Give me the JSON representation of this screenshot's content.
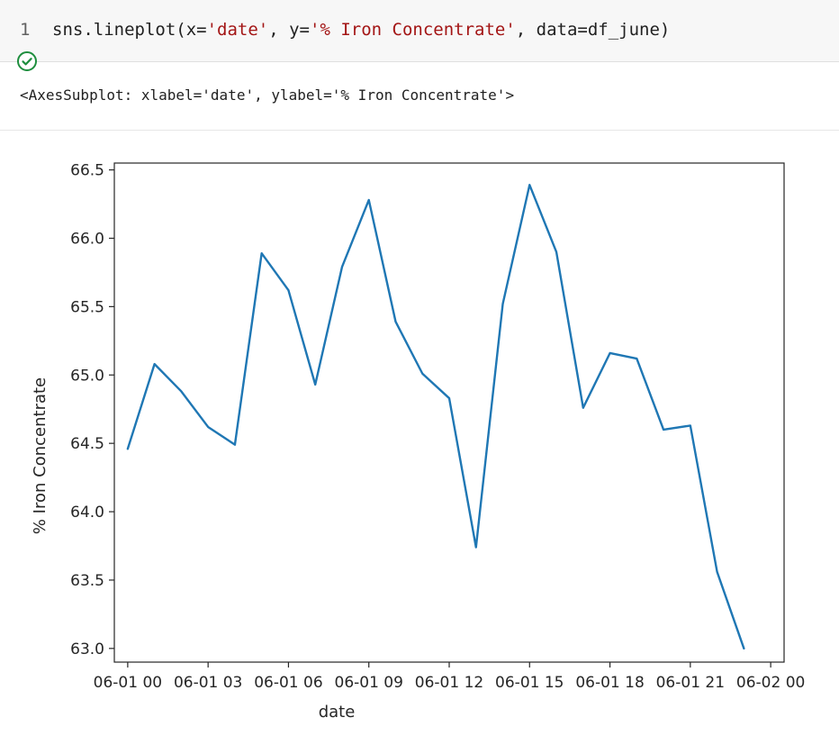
{
  "cell": {
    "line_number": "1",
    "code_prefix": "sns.lineplot(x=",
    "code_x_arg": "'date'",
    "code_mid": ", y=",
    "code_y_arg": "'% Iron Concentrate'",
    "code_suffix": ", data=df_june)",
    "status_icon": "check-circle-icon",
    "status_color": "#1e8e3e"
  },
  "output": {
    "repr": "<AxesSubplot: xlabel='date', ylabel='% Iron Concentrate'>"
  },
  "chart_data": {
    "type": "line",
    "xlabel": "date",
    "ylabel": "% Iron Concentrate",
    "ylim": [
      62.9,
      66.55
    ],
    "xlim": [
      -0.5,
      24.5
    ],
    "yticks": [
      63.0,
      63.5,
      64.0,
      64.5,
      65.0,
      65.5,
      66.0,
      66.5
    ],
    "xticks": [
      {
        "pos": 0,
        "label": "06-01 00"
      },
      {
        "pos": 3,
        "label": "06-01 03"
      },
      {
        "pos": 6,
        "label": "06-01 06"
      },
      {
        "pos": 9,
        "label": "06-01 09"
      },
      {
        "pos": 12,
        "label": "06-01 12"
      },
      {
        "pos": 15,
        "label": "06-01 15"
      },
      {
        "pos": 18,
        "label": "06-01 18"
      },
      {
        "pos": 21,
        "label": "06-01 21"
      },
      {
        "pos": 24,
        "label": "06-02 00"
      }
    ],
    "series": [
      {
        "color": "#1f77b4",
        "x": [
          0,
          1,
          2,
          3,
          4,
          5,
          6,
          7,
          8,
          9,
          10,
          11,
          12,
          13,
          14,
          15,
          16,
          17,
          18,
          19,
          20,
          21,
          22,
          23
        ],
        "y": [
          64.46,
          65.08,
          64.88,
          64.62,
          64.49,
          65.89,
          65.62,
          64.93,
          65.79,
          66.28,
          65.39,
          65.01,
          64.83,
          63.74,
          65.52,
          66.39,
          65.9,
          64.76,
          65.16,
          65.12,
          64.6,
          64.63,
          63.56,
          63.0
        ]
      }
    ],
    "grid": false
  }
}
